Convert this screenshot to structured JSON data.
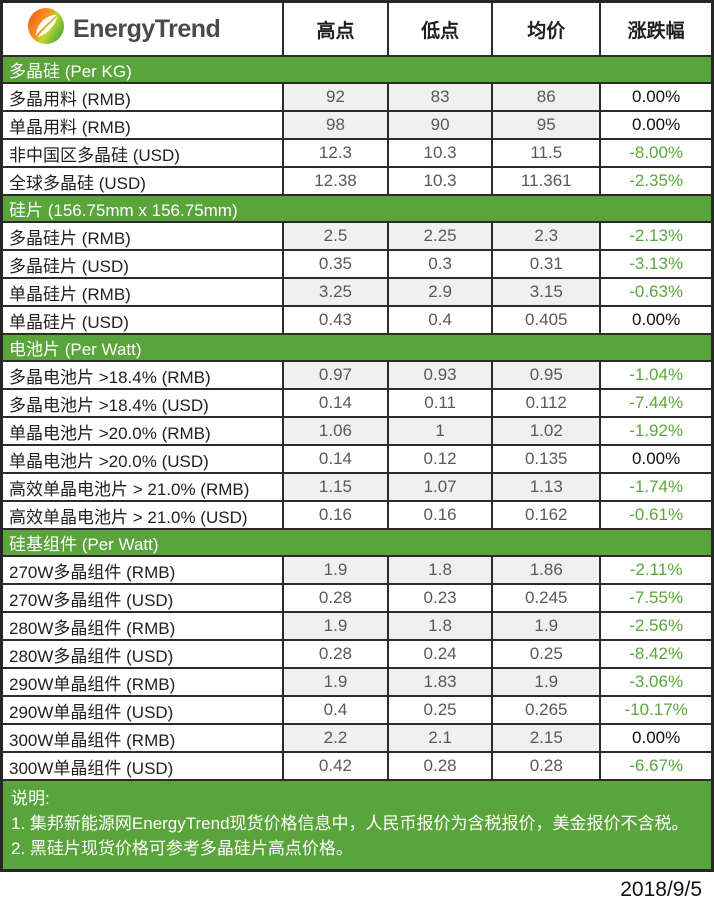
{
  "brand": {
    "name": "EnergyTrend"
  },
  "columns": [
    "高点",
    "低点",
    "均价",
    "涨跌幅"
  ],
  "colors": {
    "section_green": "#5aa43c",
    "negative_pct_green": "#5ba63b",
    "shaded_cell": "#f0f0f0",
    "border": "#2b2b2b",
    "logo_orange": "#f7931e",
    "logo_green": "#3fa33c"
  },
  "icons": {
    "logo": "leaf-icon"
  },
  "sections": [
    {
      "title": "多晶硅 (Per KG)",
      "rows": [
        {
          "label": "多晶用料 (RMB)",
          "high": "92",
          "low": "83",
          "avg": "86",
          "change": "0.00%"
        },
        {
          "label": "单晶用料 (RMB)",
          "high": "98",
          "low": "90",
          "avg": "95",
          "change": "0.00%"
        },
        {
          "label": "非中国区多晶硅 (USD)",
          "high": "12.3",
          "low": "10.3",
          "avg": "11.5",
          "change": "-8.00%"
        },
        {
          "label": "全球多晶硅 (USD)",
          "high": "12.38",
          "low": "10.3",
          "avg": "11.361",
          "change": "-2.35%"
        }
      ]
    },
    {
      "title": "硅片 (156.75mm x 156.75mm)",
      "rows": [
        {
          "label": "多晶硅片 (RMB)",
          "high": "2.5",
          "low": "2.25",
          "avg": "2.3",
          "change": "-2.13%"
        },
        {
          "label": "多晶硅片 (USD)",
          "high": "0.35",
          "low": "0.3",
          "avg": "0.31",
          "change": "-3.13%"
        },
        {
          "label": "单晶硅片 (RMB)",
          "high": "3.25",
          "low": "2.9",
          "avg": "3.15",
          "change": "-0.63%"
        },
        {
          "label": "单晶硅片 (USD)",
          "high": "0.43",
          "low": "0.4",
          "avg": "0.405",
          "change": "0.00%"
        }
      ]
    },
    {
      "title": "电池片 (Per Watt)",
      "rows": [
        {
          "label": "多晶电池片 >18.4% (RMB)",
          "high": "0.97",
          "low": "0.93",
          "avg": "0.95",
          "change": "-1.04%"
        },
        {
          "label": "多晶电池片 >18.4% (USD)",
          "high": "0.14",
          "low": "0.11",
          "avg": "0.112",
          "change": "-7.44%"
        },
        {
          "label": "单晶电池片 >20.0% (RMB)",
          "high": "1.06",
          "low": "1",
          "avg": "1.02",
          "change": "-1.92%"
        },
        {
          "label": "单晶电池片 >20.0% (USD)",
          "high": "0.14",
          "low": "0.12",
          "avg": "0.135",
          "change": "0.00%"
        },
        {
          "label": "高效单晶电池片 > 21.0% (RMB)",
          "high": "1.15",
          "low": "1.07",
          "avg": "1.13",
          "change": "-1.74%"
        },
        {
          "label": "高效单晶电池片 > 21.0% (USD)",
          "high": "0.16",
          "low": "0.16",
          "avg": "0.162",
          "change": "-0.61%"
        }
      ]
    },
    {
      "title": "硅基组件 (Per Watt)",
      "rows": [
        {
          "label": "270W多晶组件 (RMB)",
          "high": "1.9",
          "low": "1.8",
          "avg": "1.86",
          "change": "-2.11%"
        },
        {
          "label": "270W多晶组件 (USD)",
          "high": "0.28",
          "low": "0.23",
          "avg": "0.245",
          "change": "-7.55%"
        },
        {
          "label": "280W多晶组件 (RMB)",
          "high": "1.9",
          "low": "1.8",
          "avg": "1.9",
          "change": "-2.56%"
        },
        {
          "label": "280W多晶组件 (USD)",
          "high": "0.28",
          "low": "0.24",
          "avg": "0.25",
          "change": "-8.42%"
        },
        {
          "label": "290W单晶组件 (RMB)",
          "high": "1.9",
          "low": "1.83",
          "avg": "1.9",
          "change": "-3.06%"
        },
        {
          "label": "290W单晶组件 (USD)",
          "high": "0.4",
          "low": "0.25",
          "avg": "0.265",
          "change": "-10.17%"
        },
        {
          "label": "300W单晶组件 (RMB)",
          "high": "2.2",
          "low": "2.1",
          "avg": "2.15",
          "change": "0.00%"
        },
        {
          "label": "300W单晶组件 (USD)",
          "high": "0.42",
          "low": "0.28",
          "avg": "0.28",
          "change": "-6.67%"
        }
      ]
    }
  ],
  "notes": {
    "heading": "说明:",
    "items": [
      "1. 集邦新能源网EnergyTrend现货价格信息中，人民币报价为含税报价，美金报价不含税。",
      "2. 黑硅片现货价格可参考多晶硅片高点价格。"
    ]
  },
  "date": "2018/9/5"
}
